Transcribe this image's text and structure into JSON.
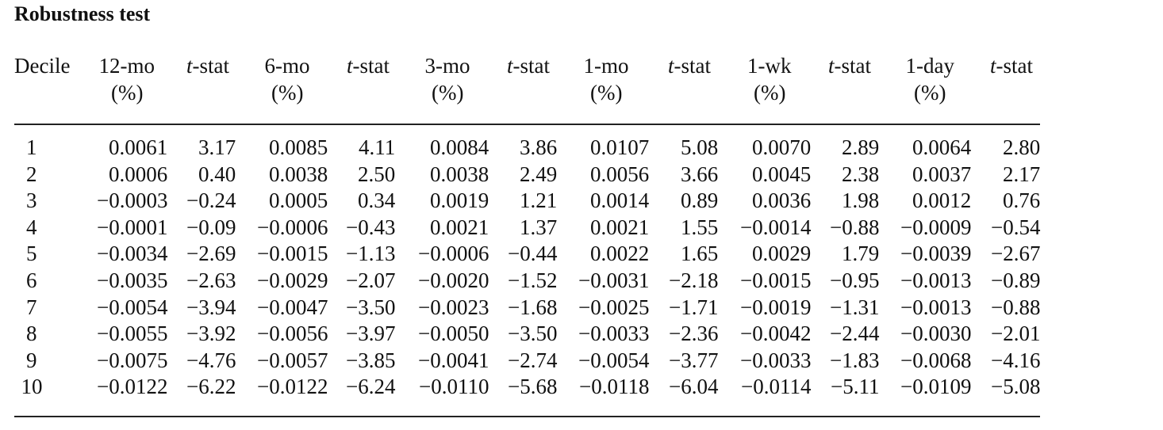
{
  "title": "Robustness test",
  "table": {
    "header": [
      {
        "line1": "Decile"
      },
      {
        "line1": "12-mo",
        "line2": "(%)"
      },
      {
        "line1": "t-stat"
      },
      {
        "line1": "6-mo",
        "line2": "(%)"
      },
      {
        "line1": "t-stat"
      },
      {
        "line1": "3-mo",
        "line2": "(%)"
      },
      {
        "line1": "t-stat"
      },
      {
        "line1": "1-mo",
        "line2": "(%)"
      },
      {
        "line1": "t-stat"
      },
      {
        "line1": "1-wk",
        "line2": "(%)"
      },
      {
        "line1": "t-stat"
      },
      {
        "line1": "1-day",
        "line2": "(%)"
      },
      {
        "line1": "t-stat"
      }
    ],
    "rows": [
      [
        "1",
        "0.0061",
        "3.17",
        "0.0085",
        "4.11",
        "0.0084",
        "3.86",
        "0.0107",
        "5.08",
        "0.0070",
        "2.89",
        "0.0064",
        "2.80"
      ],
      [
        "2",
        "0.0006",
        "0.40",
        "0.0038",
        "2.50",
        "0.0038",
        "2.49",
        "0.0056",
        "3.66",
        "0.0045",
        "2.38",
        "0.0037",
        "2.17"
      ],
      [
        "3",
        "−0.0003",
        "−0.24",
        "0.0005",
        "0.34",
        "0.0019",
        "1.21",
        "0.0014",
        "0.89",
        "0.0036",
        "1.98",
        "0.0012",
        "0.76"
      ],
      [
        "4",
        "−0.0001",
        "−0.09",
        "−0.0006",
        "−0.43",
        "0.0021",
        "1.37",
        "0.0021",
        "1.55",
        "−0.0014",
        "−0.88",
        "−0.0009",
        "−0.54"
      ],
      [
        "5",
        "−0.0034",
        "−2.69",
        "−0.0015",
        "−1.13",
        "−0.0006",
        "−0.44",
        "0.0022",
        "1.65",
        "0.0029",
        "1.79",
        "−0.0039",
        "−2.67"
      ],
      [
        "6",
        "−0.0035",
        "−2.63",
        "−0.0029",
        "−2.07",
        "−0.0020",
        "−1.52",
        "−0.0031",
        "−2.18",
        "−0.0015",
        "−0.95",
        "−0.0013",
        "−0.89"
      ],
      [
        "7",
        "−0.0054",
        "−3.94",
        "−0.0047",
        "−3.50",
        "−0.0023",
        "−1.68",
        "−0.0025",
        "−1.71",
        "−0.0019",
        "−1.31",
        "−0.0013",
        "−0.88"
      ],
      [
        "8",
        "−0.0055",
        "−3.92",
        "−0.0056",
        "−3.97",
        "−0.0050",
        "−3.50",
        "−0.0033",
        "−2.36",
        "−0.0042",
        "−2.44",
        "−0.0030",
        "−2.01"
      ],
      [
        "9",
        "−0.0075",
        "−4.76",
        "−0.0057",
        "−3.85",
        "−0.0041",
        "−2.74",
        "−0.0054",
        "−3.77",
        "−0.0033",
        "−1.83",
        "−0.0068",
        "−4.16"
      ],
      [
        "10",
        "−0.0122",
        "−6.22",
        "−0.0122",
        "−6.24",
        "−0.0110",
        "−5.68",
        "−0.0118",
        "−6.04",
        "−0.0114",
        "−5.11",
        "−0.0109",
        "−5.08"
      ]
    ]
  }
}
